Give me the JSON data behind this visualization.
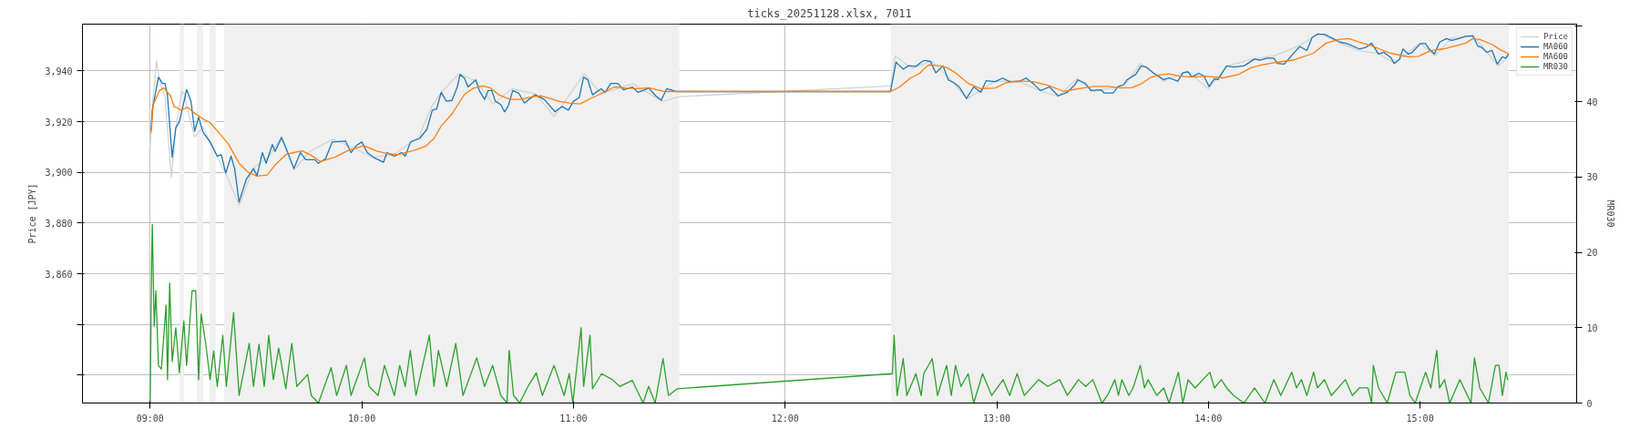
{
  "chart_data": {
    "type": "line",
    "title": "ticks_20251128.xlsx, 7011",
    "ylabel": "Price [JPY]",
    "y2label": "MR030",
    "xlim": [
      8.68,
      15.74
    ],
    "xticks": [
      {
        "value": 9,
        "label": "09:00"
      },
      {
        "value": 10,
        "label": "10:00"
      },
      {
        "value": 11,
        "label": "11:00"
      },
      {
        "value": 12,
        "label": "12:00"
      },
      {
        "value": 13,
        "label": "13:00"
      },
      {
        "value": 14,
        "label": "14:00"
      },
      {
        "value": 15,
        "label": "15:00"
      }
    ],
    "ylim": [
      3809,
      3958.5
    ],
    "yticks": [
      {
        "value": 3820,
        "label": null
      },
      {
        "value": 3840,
        "label": null
      },
      {
        "value": 3860,
        "label": "3,860"
      },
      {
        "value": 3880,
        "label": "3,880"
      },
      {
        "value": 3900,
        "label": "3,900"
      },
      {
        "value": 3920,
        "label": "3,920"
      },
      {
        "value": 3940,
        "label": "3,940"
      }
    ],
    "y2lim": [
      0,
      50.3
    ],
    "y2ticks": [
      0,
      10,
      20,
      30,
      40,
      {
        "value": 50,
        "label": null
      }
    ],
    "grid": true,
    "legend": "top right",
    "line_style": "solid",
    "marker": "none",
    "bands": [
      {
        "axis": "x",
        "from": 9.14,
        "to": 9.16,
        "color": "#f0f0f0"
      },
      {
        "axis": "x",
        "from": 9.22,
        "to": 9.25,
        "color": "#f0f0f0"
      },
      {
        "axis": "x",
        "from": 9.28,
        "to": 9.31,
        "color": "#f0f0f0"
      },
      {
        "axis": "x",
        "from": 9.35,
        "to": 11.5,
        "color": "#f0f0f0"
      },
      {
        "axis": "x",
        "from": 12.5,
        "to": 15.42,
        "color": "#f0f0f0"
      }
    ],
    "series": [
      {
        "name": "Price",
        "color": "#d3d3d3",
        "x": [
          9.0,
          9.01,
          9.03,
          9.045,
          9.07,
          9.1,
          9.12,
          9.15,
          9.162,
          9.17,
          9.21,
          9.25,
          9.3,
          9.36,
          9.42,
          9.49,
          9.56,
          9.62,
          9.68,
          9.75,
          9.86,
          9.95,
          10.05,
          10.15,
          10.27,
          10.33,
          10.38,
          10.46,
          10.54,
          10.62,
          10.71,
          10.82,
          10.91,
          11.05,
          11.13,
          11.28,
          11.42,
          11.5,
          12.5,
          12.52,
          12.6,
          12.69,
          12.8,
          12.86,
          12.99,
          13.1,
          13.21,
          13.29,
          13.38,
          13.45,
          13.6,
          13.68,
          13.79,
          13.9,
          14.0,
          14.09,
          14.22,
          14.31,
          14.43,
          14.52,
          14.62,
          14.71,
          14.8,
          14.88,
          15.0,
          15.07,
          15.15,
          15.25,
          15.32,
          15.37,
          15.42
        ],
        "values": [
          3910,
          3926,
          3944,
          3936,
          3930,
          3898,
          3917,
          3932,
          3931,
          3927,
          3914,
          3918,
          3909,
          3899,
          3887,
          3902,
          3906,
          3914,
          3901,
          3908,
          3913,
          3910,
          3906,
          3907,
          3914,
          3926,
          3932,
          3939,
          3936,
          3927,
          3933,
          3931,
          3922,
          3939,
          3931,
          3935,
          3928,
          3929.9,
          3934.1,
          3946,
          3941,
          3944,
          3935,
          3929,
          3936,
          3936,
          3932,
          3930,
          3937,
          3932,
          3934,
          3943,
          3936,
          3940,
          3933,
          3942,
          3945,
          3946,
          3950,
          3955,
          3951,
          3948,
          3947,
          3943,
          3951,
          3946,
          3953,
          3954,
          3947,
          3942,
          3946
        ]
      },
      {
        "name": "MA060",
        "color": "#1f77b4",
        "x": [
          9.005,
          9.01,
          9.039,
          9.058,
          9.07,
          9.081,
          9.104,
          9.121,
          9.138,
          9.164,
          9.172,
          9.193,
          9.21,
          9.229,
          9.249,
          9.283,
          9.317,
          9.336,
          9.357,
          9.382,
          9.399,
          9.42,
          9.454,
          9.488,
          9.505,
          9.53,
          9.548,
          9.577,
          9.59,
          9.621,
          9.65,
          9.679,
          9.71,
          9.735,
          9.778,
          9.795,
          9.829,
          9.86,
          9.923,
          9.949,
          9.974,
          10.0,
          10.026,
          10.06,
          10.102,
          10.119,
          10.153,
          10.188,
          10.205,
          10.23,
          10.273,
          10.307,
          10.333,
          10.353,
          10.375,
          10.4,
          10.426,
          10.451,
          10.464,
          10.485,
          10.502,
          10.538,
          10.555,
          10.58,
          10.597,
          10.614,
          10.631,
          10.657,
          10.674,
          10.691,
          10.713,
          10.742,
          10.768,
          10.819,
          10.862,
          10.913,
          10.945,
          10.976,
          11.0,
          11.027,
          11.048,
          11.068,
          11.09,
          11.13,
          11.15,
          11.176,
          11.21,
          11.236,
          11.278,
          11.304,
          11.329,
          11.355,
          11.389,
          11.415,
          11.44,
          11.483,
          11.5,
          12.498,
          12.524,
          12.541,
          12.558,
          12.584,
          12.618,
          12.643,
          12.66,
          12.686,
          12.712,
          12.746,
          12.771,
          12.797,
          12.823,
          12.857,
          12.891,
          12.925,
          12.95,
          12.993,
          13.027,
          13.061,
          13.104,
          13.138,
          13.172,
          13.206,
          13.249,
          13.29,
          13.333,
          13.367,
          13.384,
          13.419,
          13.445,
          13.492,
          13.508,
          13.55,
          13.574,
          13.599,
          13.616,
          13.657,
          13.682,
          13.706,
          13.739,
          13.789,
          13.814,
          13.855,
          13.88,
          13.904,
          13.921,
          13.954,
          13.979,
          14.003,
          14.028,
          14.045,
          14.086,
          14.119,
          14.168,
          14.218,
          14.243,
          14.276,
          14.309,
          14.325,
          14.358,
          14.399,
          14.432,
          14.465,
          14.49,
          14.515,
          14.548,
          14.589,
          14.622,
          14.655,
          14.713,
          14.746,
          14.771,
          14.804,
          14.828,
          14.861,
          14.878,
          14.903,
          14.919,
          14.944,
          14.96,
          15.002,
          15.026,
          15.043,
          15.068,
          15.092,
          15.125,
          15.15,
          15.183,
          15.216,
          15.249,
          15.274,
          15.29,
          15.315,
          15.34,
          15.365,
          15.389,
          15.406,
          15.417
        ],
        "values": [
          3916.9,
          3924.6,
          3937.6,
          3935.1,
          3935.1,
          3930.9,
          3906,
          3917.6,
          3920,
          3929.5,
          3932.7,
          3928,
          3916.2,
          3921.8,
          3916,
          3912,
          3906.4,
          3907,
          3899.7,
          3906.4,
          3901.5,
          3888.3,
          3897.3,
          3901.5,
          3898.7,
          3907.8,
          3903.6,
          3911,
          3908.3,
          3913.8,
          3907.8,
          3901.5,
          3907.8,
          3905,
          3905,
          3903.6,
          3905.5,
          3912,
          3912.4,
          3907.8,
          3910.6,
          3912,
          3907.8,
          3905.7,
          3904,
          3907.8,
          3906.4,
          3907.8,
          3906.4,
          3912,
          3913.4,
          3916.9,
          3924.6,
          3925,
          3931.6,
          3928.1,
          3928.4,
          3933.7,
          3938.6,
          3937.2,
          3933.7,
          3936.5,
          3932.3,
          3928.8,
          3932.3,
          3932.3,
          3928.1,
          3926.7,
          3923.9,
          3926,
          3932.3,
          3931.2,
          3927.4,
          3930.6,
          3928.8,
          3923.9,
          3926,
          3924.6,
          3928.1,
          3929.5,
          3937.6,
          3936.5,
          3930.6,
          3933,
          3931.6,
          3935.1,
          3935.1,
          3932.6,
          3933.7,
          3931.6,
          3932.3,
          3933.3,
          3930.2,
          3928.5,
          3933,
          3932,
          3931.9,
          3931.9,
          3943.5,
          3942.1,
          3940.7,
          3942.1,
          3941.8,
          3943.5,
          3944.2,
          3943.8,
          3939.3,
          3942.1,
          3936.5,
          3935.4,
          3933.7,
          3929.2,
          3933.7,
          3931.6,
          3936.2,
          3935.8,
          3937.2,
          3935.8,
          3935.8,
          3937.2,
          3935.1,
          3932.3,
          3933.7,
          3930.2,
          3931.6,
          3934.4,
          3936.5,
          3935.1,
          3932.3,
          3932.6,
          3931.3,
          3931.3,
          3933.9,
          3934.6,
          3936.6,
          3938.7,
          3942,
          3941.6,
          3939.3,
          3936.6,
          3937.3,
          3936,
          3939.3,
          3939.7,
          3937.6,
          3939.1,
          3938,
          3933.9,
          3936.9,
          3936.6,
          3942,
          3941.6,
          3942,
          3944.7,
          3944.3,
          3945.1,
          3945.1,
          3943,
          3942.7,
          3946.7,
          3949.7,
          3948.1,
          3953.2,
          3954.5,
          3954.5,
          3952.8,
          3951.4,
          3950.8,
          3948.7,
          3949.4,
          3951,
          3946.7,
          3947.4,
          3945.4,
          3943,
          3944.7,
          3948.7,
          3946.7,
          3947.1,
          3950.8,
          3950.8,
          3948.7,
          3946.7,
          3951.4,
          3952.8,
          3952.1,
          3952.8,
          3953.7,
          3953.9,
          3949.7,
          3949.4,
          3947.4,
          3948.1,
          3942.7,
          3945.6,
          3945.1,
          3946.7
        ]
      },
      {
        "name": "MA600",
        "color": "#ff7f0e",
        "x": [
          9.005,
          9.014,
          9.044,
          9.065,
          9.096,
          9.113,
          9.147,
          9.177,
          9.206,
          9.249,
          9.283,
          9.326,
          9.369,
          9.42,
          9.462,
          9.505,
          9.553,
          9.59,
          9.642,
          9.693,
          9.718,
          9.761,
          9.804,
          9.872,
          9.932,
          10.009,
          10.068,
          10.119,
          10.171,
          10.239,
          10.299,
          10.341,
          10.375,
          10.427,
          10.486,
          10.529,
          10.572,
          10.606,
          10.648,
          10.7,
          10.751,
          10.802,
          10.845,
          10.904,
          10.928,
          10.98,
          11.031,
          11.082,
          11.133,
          11.193,
          11.244,
          11.304,
          11.355,
          11.423,
          11.483,
          12.498,
          12.541,
          12.592,
          12.634,
          12.677,
          12.729,
          12.763,
          12.805,
          12.865,
          12.925,
          12.993,
          13.044,
          13.096,
          13.172,
          13.241,
          13.317,
          13.386,
          13.459,
          13.525,
          13.591,
          13.64,
          13.682,
          13.723,
          13.764,
          13.814,
          13.863,
          13.921,
          13.987,
          14.069,
          14.144,
          14.201,
          14.251,
          14.317,
          14.399,
          14.495,
          14.556,
          14.614,
          14.663,
          14.713,
          14.779,
          14.861,
          14.944,
          14.993,
          15.051,
          15.109,
          15.175,
          15.216,
          15.249,
          15.282,
          15.34,
          15.381,
          15.414
        ],
        "values": [
          3915.8,
          3926.7,
          3932.3,
          3933.3,
          3930.2,
          3926,
          3924.6,
          3925.7,
          3923.6,
          3921.1,
          3919.7,
          3915.5,
          3911.3,
          3903.6,
          3900.1,
          3898.5,
          3899,
          3902.9,
          3907.1,
          3908.1,
          3908.5,
          3906.7,
          3904.3,
          3906,
          3908.5,
          3910.6,
          3908.5,
          3907.4,
          3907.1,
          3908.5,
          3910.2,
          3913.4,
          3918.3,
          3923.2,
          3930.9,
          3933.3,
          3934.1,
          3933.4,
          3930.6,
          3928.8,
          3928.8,
          3929.8,
          3930.2,
          3928.8,
          3928.1,
          3927.4,
          3927,
          3929.2,
          3931.2,
          3933.7,
          3933.3,
          3933,
          3933.4,
          3932,
          3931.9,
          3931.9,
          3933.7,
          3937.2,
          3939,
          3942.4,
          3942.1,
          3941.4,
          3939.3,
          3935.1,
          3933,
          3933.3,
          3935.4,
          3936.1,
          3935.8,
          3934.4,
          3932,
          3933,
          3933.9,
          3933.9,
          3933.3,
          3933.5,
          3934.9,
          3937.3,
          3938.4,
          3938.9,
          3938,
          3937.6,
          3938,
          3937.3,
          3938.7,
          3941.3,
          3942.4,
          3943.4,
          3944.3,
          3947,
          3951,
          3952.4,
          3952.8,
          3951.4,
          3949.7,
          3947,
          3945.6,
          3945.8,
          3948.1,
          3948.7,
          3950.1,
          3951,
          3952.8,
          3952.4,
          3950.5,
          3948.3,
          3947
        ]
      },
      {
        "name": "MR030",
        "color": "#2ca02c",
        "axis": "y2",
        "x": [
          9.0,
          9.007,
          9.01,
          9.019,
          9.027,
          9.039,
          9.053,
          9.075,
          9.082,
          9.092,
          9.104,
          9.121,
          9.138,
          9.159,
          9.172,
          9.198,
          9.215,
          9.229,
          9.241,
          9.263,
          9.283,
          9.3,
          9.317,
          9.343,
          9.36,
          9.394,
          9.42,
          9.468,
          9.488,
          9.514,
          9.539,
          9.56,
          9.582,
          9.607,
          9.641,
          9.669,
          9.693,
          9.744,
          9.761,
          9.795,
          9.855,
          9.881,
          9.927,
          9.949,
          10.012,
          10.034,
          10.077,
          10.107,
          10.154,
          10.179,
          10.205,
          10.229,
          10.256,
          10.319,
          10.341,
          10.362,
          10.401,
          10.444,
          10.478,
          10.543,
          10.58,
          10.618,
          10.657,
          10.686,
          10.696,
          10.717,
          10.746,
          10.785,
          10.824,
          10.853,
          10.908,
          10.956,
          10.98,
          10.997,
          11.036,
          11.048,
          11.078,
          11.09,
          11.133,
          11.184,
          11.218,
          11.278,
          11.329,
          11.355,
          11.386,
          11.423,
          11.449,
          11.491,
          12.507,
          12.515,
          12.524,
          12.529,
          12.558,
          12.575,
          12.618,
          12.643,
          12.655,
          12.695,
          12.72,
          12.763,
          12.785,
          12.805,
          12.831,
          12.865,
          12.891,
          12.933,
          12.976,
          13.03,
          13.061,
          13.096,
          13.13,
          13.198,
          13.241,
          13.297,
          13.334,
          13.386,
          13.42,
          13.454,
          13.497,
          13.523,
          13.558,
          13.575,
          13.591,
          13.624,
          13.644,
          13.678,
          13.698,
          13.715,
          13.756,
          13.789,
          13.814,
          13.858,
          13.879,
          13.904,
          13.937,
          14.007,
          14.028,
          14.061,
          14.086,
          14.119,
          14.168,
          14.218,
          14.267,
          14.309,
          14.342,
          14.394,
          14.416,
          14.44,
          14.465,
          14.497,
          14.515,
          14.548,
          14.581,
          14.647,
          14.68,
          14.713,
          14.754,
          14.771,
          14.779,
          14.804,
          14.845,
          14.886,
          14.908,
          14.928,
          14.952,
          14.977,
          15.026,
          15.051,
          15.079,
          15.092,
          15.116,
          15.14,
          15.188,
          15.224,
          15.241,
          15.257,
          15.282,
          15.323,
          15.356,
          15.373,
          15.389,
          15.406,
          15.414
        ],
        "values": [
          0,
          18.9,
          23.7,
          10.2,
          14.9,
          5,
          4.5,
          13,
          3.1,
          15.9,
          5.5,
          10,
          4,
          10.9,
          5,
          14.9,
          14.9,
          3.1,
          11.8,
          7.8,
          3.1,
          6.9,
          2.2,
          9,
          2.2,
          12,
          1,
          7.9,
          2.2,
          7.8,
          2.2,
          9,
          3.1,
          7.3,
          1.9,
          7.9,
          2.2,
          3.8,
          1,
          0,
          4.7,
          1,
          5,
          1,
          6,
          2.2,
          1,
          5,
          1,
          5,
          2.2,
          7,
          1,
          9,
          2.2,
          7,
          2.2,
          7.9,
          1,
          6,
          2.2,
          5,
          1,
          0,
          7,
          1,
          0,
          2.2,
          4,
          1,
          5,
          1,
          3.9,
          0,
          10,
          2.2,
          9,
          1.9,
          3.9,
          3.1,
          2.2,
          3,
          0,
          2.2,
          0,
          5.9,
          1,
          1.9,
          3.9,
          9,
          4,
          1,
          5.9,
          1,
          3.9,
          1,
          3.9,
          5.9,
          1,
          5,
          1,
          5,
          2.2,
          3.9,
          0,
          3.9,
          1,
          3.1,
          1,
          3.9,
          1,
          3.1,
          2.2,
          3.1,
          1,
          3.1,
          2.2,
          3.1,
          0,
          1,
          3.1,
          1,
          3.1,
          1,
          2,
          5,
          2,
          3.1,
          1,
          2,
          0,
          4.1,
          0,
          3.1,
          2,
          4.1,
          2,
          3.1,
          2,
          1,
          0,
          2,
          0,
          3.1,
          1,
          4.1,
          2,
          3.1,
          1,
          4.1,
          2,
          3.1,
          1,
          3.1,
          1,
          2,
          2,
          0,
          5,
          2,
          0,
          4.1,
          4.1,
          4.1,
          1,
          0,
          4.1,
          2,
          7,
          2,
          3.1,
          0,
          3.1,
          1,
          0,
          6,
          2,
          0,
          5,
          5,
          1,
          4.1,
          3.1
        ]
      }
    ]
  }
}
